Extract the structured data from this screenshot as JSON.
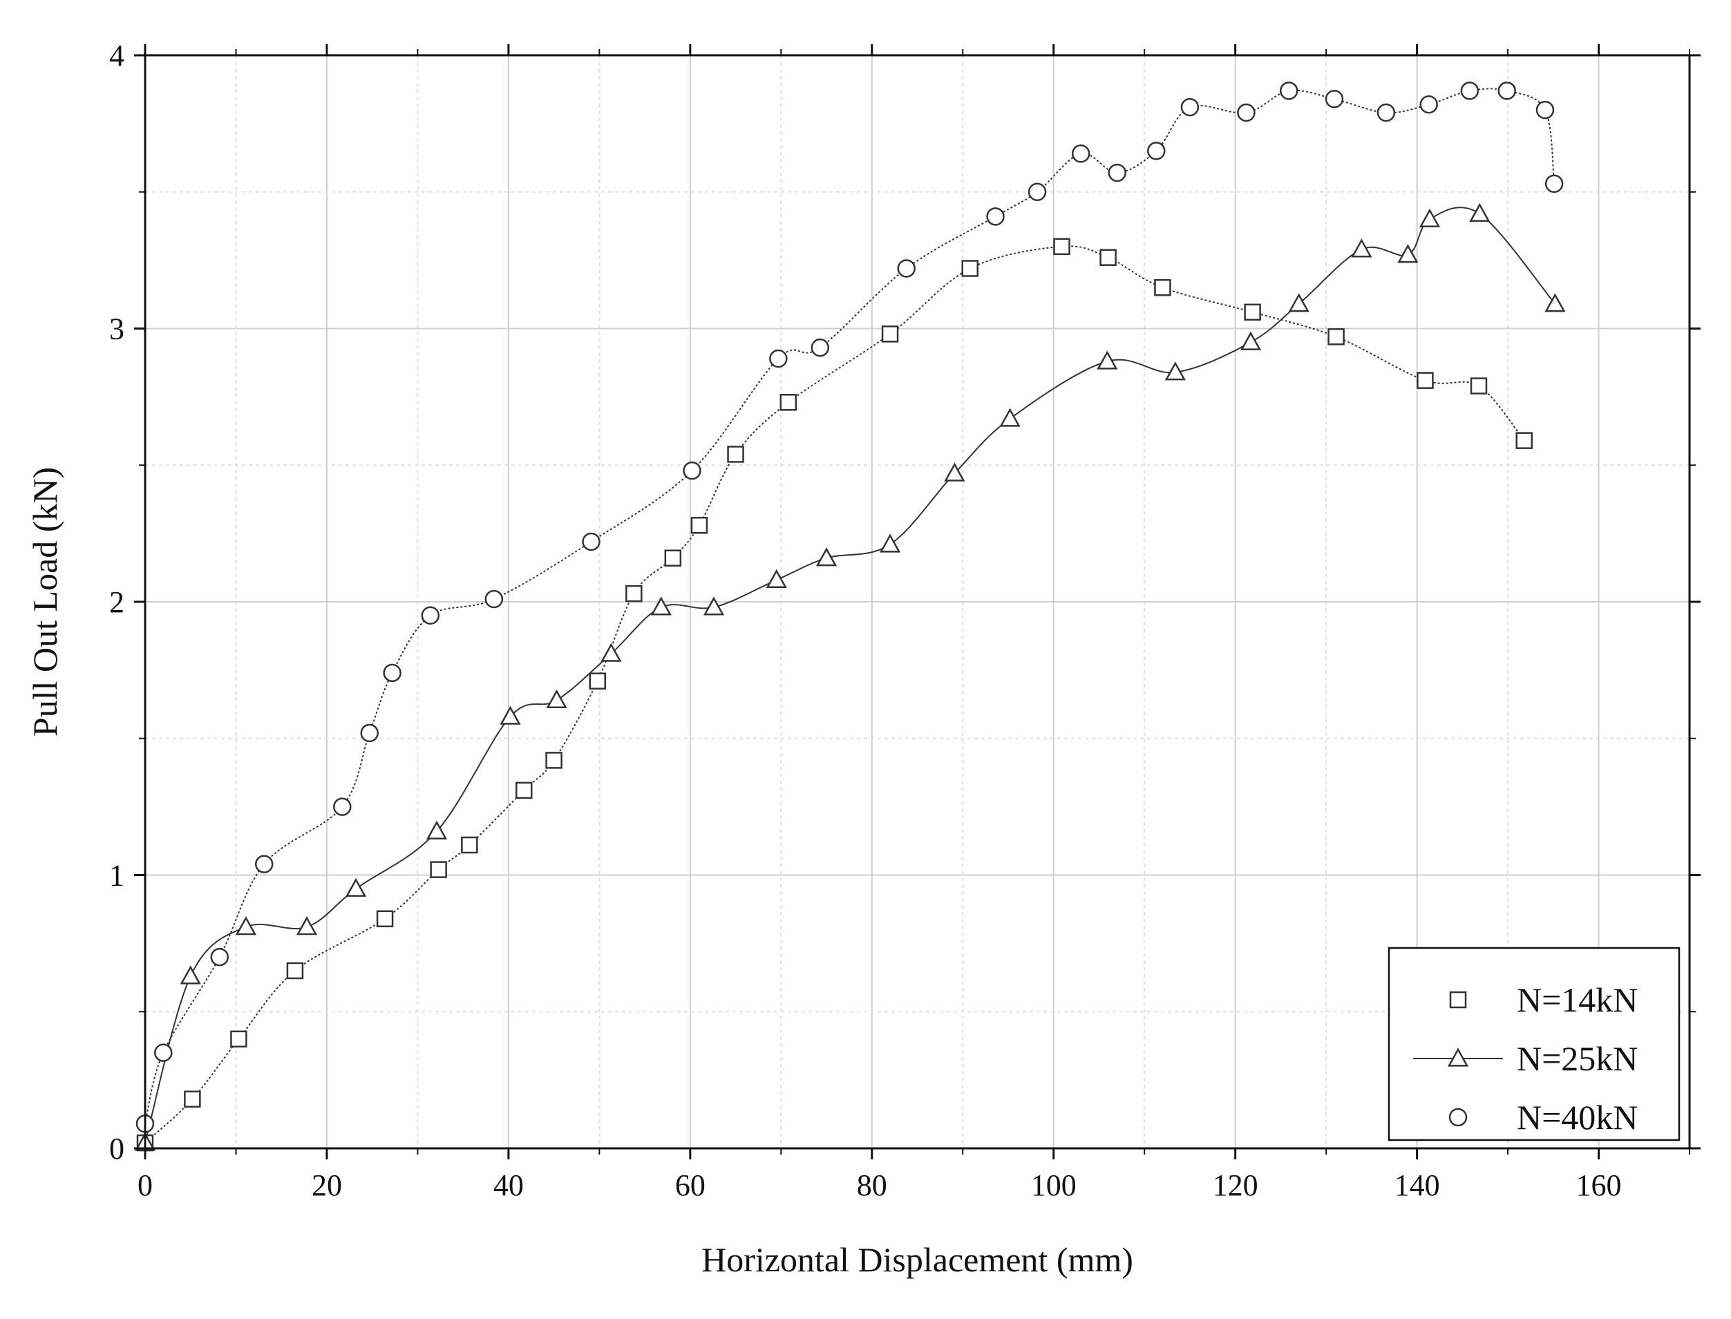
{
  "chart_data": {
    "type": "line",
    "title": "",
    "xlabel": "Horizontal Displacement (mm)",
    "ylabel": "Pull Out Load (kN)",
    "xlim": [
      0,
      170
    ],
    "ylim": [
      0,
      4
    ],
    "x_ticks": [
      0,
      20,
      40,
      60,
      80,
      100,
      120,
      140,
      160
    ],
    "y_ticks": [
      0,
      1,
      2,
      3,
      4
    ],
    "x_tick_labels": [
      "0",
      "20",
      "40",
      "60",
      "80",
      "100",
      "120",
      "140",
      "160"
    ],
    "y_tick_labels": [
      "0",
      "1",
      "2",
      "3",
      "4"
    ],
    "grid": true,
    "legend_position": "bottom-right",
    "series": [
      {
        "name": "N=14kN",
        "marker": "square",
        "line": "dotted",
        "color": "#333333",
        "x": [
          0,
          5.2,
          10.3,
          16.5,
          26.4,
          32.3,
          35.7,
          41.7,
          45.0,
          49.8,
          53.8,
          58.1,
          61.0,
          65.0,
          70.8,
          82.0,
          90.8,
          100.9,
          106.0,
          112.0,
          121.9,
          131.1,
          140.9,
          146.8,
          151.8
        ],
        "y": [
          0.02,
          0.18,
          0.4,
          0.65,
          0.84,
          1.02,
          1.11,
          1.31,
          1.42,
          1.71,
          2.03,
          2.16,
          2.28,
          2.54,
          2.73,
          2.98,
          3.22,
          3.3,
          3.26,
          3.15,
          3.06,
          2.97,
          2.81,
          2.79,
          2.59
        ]
      },
      {
        "name": "N=25kN",
        "marker": "triangle",
        "line": "solid",
        "color": "#333333",
        "x": [
          0,
          5.0,
          11.1,
          17.8,
          23.2,
          32.1,
          40.2,
          45.3,
          51.3,
          56.8,
          62.6,
          69.5,
          75.0,
          82.0,
          89.1,
          95.2,
          105.9,
          113.4,
          121.7,
          127.0,
          133.9,
          139.0,
          141.4,
          146.9,
          155.2
        ],
        "y": [
          0.02,
          0.63,
          0.81,
          0.81,
          0.95,
          1.16,
          1.58,
          1.64,
          1.81,
          1.98,
          1.98,
          2.08,
          2.16,
          2.21,
          2.47,
          2.67,
          2.88,
          2.84,
          2.95,
          3.09,
          3.29,
          3.27,
          3.4,
          3.42,
          3.09
        ]
      },
      {
        "name": "N=40kN",
        "marker": "circle",
        "line": "dotted",
        "color": "#333333",
        "x": [
          0,
          2.0,
          8.2,
          13.1,
          21.7,
          24.7,
          27.2,
          31.4,
          38.4,
          49.1,
          60.2,
          69.7,
          74.3,
          83.8,
          93.6,
          98.2,
          103.0,
          107.0,
          111.3,
          115.0,
          121.2,
          125.9,
          130.9,
          136.6,
          141.3,
          145.8,
          149.9,
          154.1,
          155.1
        ],
        "y": [
          0.09,
          0.35,
          0.7,
          1.04,
          1.25,
          1.52,
          1.74,
          1.95,
          2.01,
          2.22,
          2.48,
          2.89,
          2.93,
          3.22,
          3.41,
          3.5,
          3.64,
          3.57,
          3.65,
          3.81,
          3.79,
          3.87,
          3.84,
          3.79,
          3.82,
          3.87,
          3.87,
          3.8,
          3.53
        ]
      }
    ]
  }
}
